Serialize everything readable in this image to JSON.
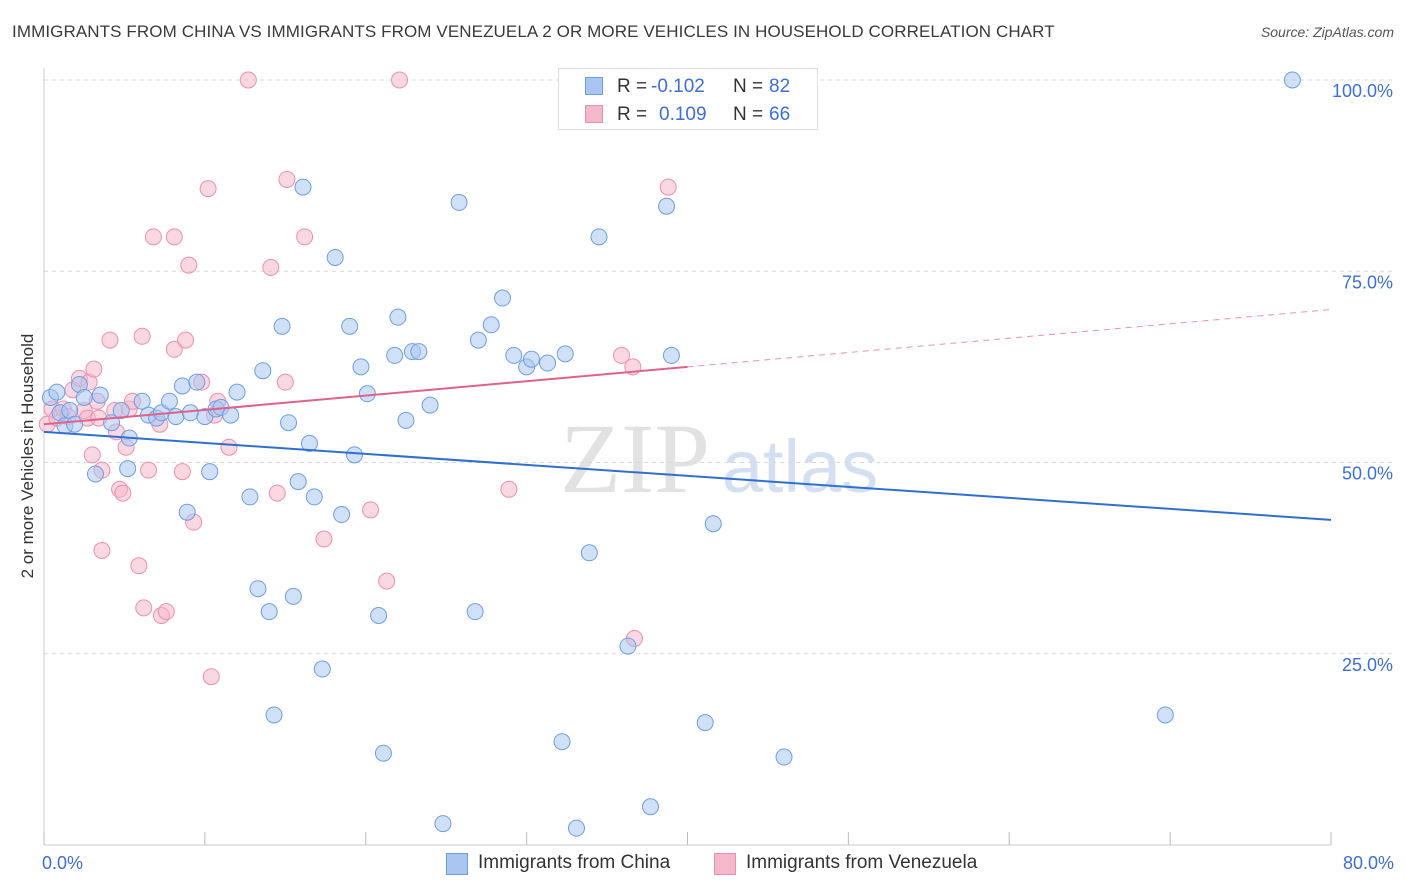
{
  "title": "IMMIGRANTS FROM CHINA VS IMMIGRANTS FROM VENEZUELA 2 OR MORE VEHICLES IN HOUSEHOLD CORRELATION CHART",
  "source": "Source: ZipAtlas.com",
  "watermark": {
    "zip": "ZIP",
    "atlas": "atlas"
  },
  "legend": {
    "rows": [
      {
        "r_label": "R =",
        "r_value": "-0.102",
        "n_label": "N =",
        "n_value": "82"
      },
      {
        "r_label": "R =",
        "r_value": "0.109",
        "n_label": "N =",
        "n_value": "66"
      }
    ]
  },
  "colors": {
    "china_fill": "#a9c6f0",
    "china_stroke": "#6f9ee0",
    "china_line": "#2f6fd1",
    "venezuela_fill": "#f5b8cb",
    "venezuela_stroke": "#eb8fae",
    "venezuela_line": "#e0628c",
    "tick_label": "#3d6fd6",
    "grid": "#d8d8d8"
  },
  "chart_data": {
    "type": "scatter",
    "title": "IMMIGRANTS FROM CHINA VS IMMIGRANTS FROM VENEZUELA 2 OR MORE VEHICLES IN HOUSEHOLD CORRELATION CHART",
    "xlabel": "",
    "ylabel": "2 or more Vehicles in Household",
    "xlim": [
      0,
      80
    ],
    "ylim": [
      0,
      100
    ],
    "x_tick_labels": [
      {
        "value": 0,
        "label": "0.0%"
      },
      {
        "value": 80,
        "label": "80.0%"
      }
    ],
    "y_tick_labels": [
      {
        "value": 25,
        "label": "25.0%"
      },
      {
        "value": 50,
        "label": "50.0%"
      },
      {
        "value": 75,
        "label": "75.0%"
      },
      {
        "value": 100,
        "label": "100.0%"
      }
    ],
    "grid": true,
    "legend_position": "top-center",
    "series": [
      {
        "name": "Immigrants from China",
        "R": -0.102,
        "N": 82,
        "trend": {
          "x": [
            0,
            80
          ],
          "y": [
            54.0,
            42.5
          ],
          "dashed_from": null
        },
        "points": [
          [
            0.4,
            58.5
          ],
          [
            0.8,
            59.2
          ],
          [
            1.0,
            56.5
          ],
          [
            1.3,
            54.8
          ],
          [
            1.6,
            56.8
          ],
          [
            1.9,
            55.0
          ],
          [
            2.2,
            60.2
          ],
          [
            2.5,
            58.5
          ],
          [
            3.2,
            48.5
          ],
          [
            3.5,
            58.8
          ],
          [
            4.2,
            55.2
          ],
          [
            4.8,
            56.8
          ],
          [
            5.3,
            53.2
          ],
          [
            5.2,
            49.2
          ],
          [
            6.1,
            58.0
          ],
          [
            6.5,
            56.2
          ],
          [
            7.0,
            55.8
          ],
          [
            7.3,
            56.5
          ],
          [
            7.8,
            58.0
          ],
          [
            8.2,
            56.0
          ],
          [
            8.6,
            60.0
          ],
          [
            8.9,
            43.5
          ],
          [
            9.1,
            56.5
          ],
          [
            9.5,
            60.5
          ],
          [
            10.0,
            56.0
          ],
          [
            10.3,
            48.8
          ],
          [
            10.7,
            57.0
          ],
          [
            11.0,
            57.2
          ],
          [
            11.6,
            56.2
          ],
          [
            12.0,
            59.2
          ],
          [
            12.8,
            45.5
          ],
          [
            13.3,
            33.5
          ],
          [
            13.6,
            62.0
          ],
          [
            14.0,
            30.5
          ],
          [
            14.3,
            17.0
          ],
          [
            14.8,
            67.8
          ],
          [
            15.2,
            55.2
          ],
          [
            15.5,
            32.5
          ],
          [
            15.8,
            47.5
          ],
          [
            16.1,
            86.0
          ],
          [
            16.5,
            52.5
          ],
          [
            16.8,
            45.5
          ],
          [
            17.3,
            23.0
          ],
          [
            18.1,
            76.8
          ],
          [
            18.5,
            43.2
          ],
          [
            19.0,
            67.8
          ],
          [
            19.3,
            51.0
          ],
          [
            19.7,
            62.5
          ],
          [
            20.1,
            59.0
          ],
          [
            20.8,
            30.0
          ],
          [
            21.1,
            12.0
          ],
          [
            21.8,
            64.0
          ],
          [
            22.0,
            69.0
          ],
          [
            22.5,
            55.5
          ],
          [
            22.9,
            64.5
          ],
          [
            23.3,
            64.5
          ],
          [
            24.0,
            57.5
          ],
          [
            24.8,
            2.8
          ],
          [
            25.8,
            84.0
          ],
          [
            26.8,
            30.5
          ],
          [
            27.0,
            66.0
          ],
          [
            27.8,
            68.0
          ],
          [
            28.5,
            71.5
          ],
          [
            29.2,
            64.0
          ],
          [
            30.0,
            62.5
          ],
          [
            30.3,
            63.5
          ],
          [
            31.3,
            63.0
          ],
          [
            32.2,
            13.5
          ],
          [
            32.4,
            64.2
          ],
          [
            33.1,
            2.2
          ],
          [
            33.9,
            38.2
          ],
          [
            34.5,
            79.5
          ],
          [
            36.3,
            26.0
          ],
          [
            37.7,
            5.0
          ],
          [
            38.7,
            83.5
          ],
          [
            39.0,
            64.0
          ],
          [
            41.1,
            16.0
          ],
          [
            41.6,
            42.0
          ],
          [
            46.0,
            11.5
          ],
          [
            69.7,
            17.0
          ],
          [
            77.6,
            100.0
          ]
        ]
      },
      {
        "name": "Immigrants from Venezuela",
        "R": 0.109,
        "N": 66,
        "trend": {
          "x": [
            0,
            80
          ],
          "y": [
            55.0,
            70.0
          ],
          "dashed_from": 40
        },
        "points": [
          [
            0.2,
            55.0
          ],
          [
            0.5,
            57.0
          ],
          [
            0.8,
            55.8
          ],
          [
            1.2,
            57.0
          ],
          [
            1.5,
            56.0
          ],
          [
            1.8,
            59.5
          ],
          [
            2.2,
            61.0
          ],
          [
            2.5,
            56.8
          ],
          [
            2.7,
            55.8
          ],
          [
            2.8,
            60.5
          ],
          [
            3.0,
            51.0
          ],
          [
            3.1,
            62.2
          ],
          [
            3.3,
            58.0
          ],
          [
            3.4,
            55.8
          ],
          [
            3.6,
            49.0
          ],
          [
            3.6,
            38.5
          ],
          [
            4.1,
            66.0
          ],
          [
            4.4,
            56.8
          ],
          [
            4.5,
            54.0
          ],
          [
            4.7,
            46.5
          ],
          [
            4.9,
            46.0
          ],
          [
            5.1,
            52.0
          ],
          [
            5.3,
            57.0
          ],
          [
            5.5,
            58.0
          ],
          [
            5.9,
            36.5
          ],
          [
            6.1,
            66.5
          ],
          [
            6.2,
            31.0
          ],
          [
            6.5,
            49.0
          ],
          [
            6.8,
            79.5
          ],
          [
            7.2,
            55.0
          ],
          [
            7.3,
            30.0
          ],
          [
            7.6,
            30.5
          ],
          [
            8.1,
            79.5
          ],
          [
            8.1,
            64.8
          ],
          [
            8.6,
            48.8
          ],
          [
            8.8,
            66.0
          ],
          [
            9.0,
            75.8
          ],
          [
            9.3,
            42.2
          ],
          [
            9.8,
            60.5
          ],
          [
            10.2,
            85.8
          ],
          [
            10.4,
            22.0
          ],
          [
            10.6,
            56.2
          ],
          [
            10.8,
            58.0
          ],
          [
            11.5,
            52.0
          ],
          [
            12.7,
            100.0
          ],
          [
            14.1,
            75.5
          ],
          [
            14.5,
            46.0
          ],
          [
            15.0,
            60.5
          ],
          [
            15.1,
            87.0
          ],
          [
            16.2,
            79.5
          ],
          [
            17.4,
            40.0
          ],
          [
            20.3,
            43.8
          ],
          [
            21.3,
            34.5
          ],
          [
            22.1,
            100.0
          ],
          [
            28.9,
            46.5
          ],
          [
            35.9,
            64.0
          ],
          [
            36.6,
            62.5
          ],
          [
            36.7,
            27.0
          ],
          [
            38.8,
            86.0
          ]
        ]
      }
    ]
  },
  "bottom_legend": [
    {
      "label": "Immigrants from China"
    },
    {
      "label": "Immigrants from Venezuela"
    }
  ]
}
